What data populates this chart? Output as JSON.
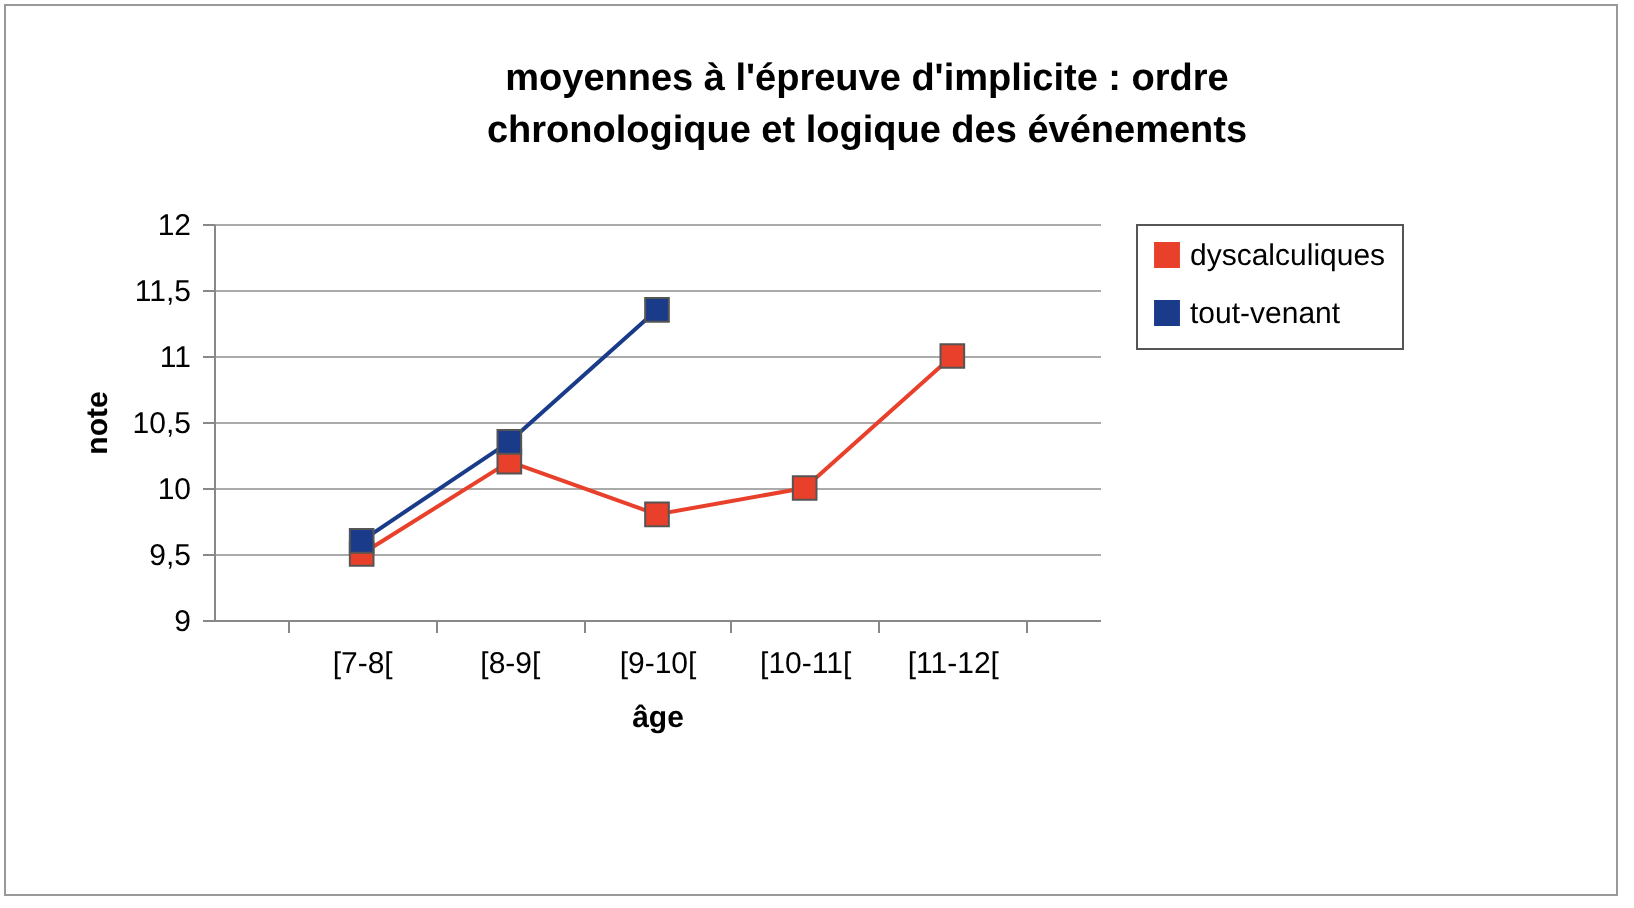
{
  "chart_data": {
    "type": "line",
    "title": "moyennes à l'épreuve d'implicite : ordre chronologique et logique des événements",
    "xlabel": "âge",
    "ylabel": "note",
    "categories": [
      "[7-8[",
      "[8-9[",
      "[9-10[",
      "[10-11[",
      "[11-12["
    ],
    "series": [
      {
        "name": "dyscalculiques",
        "color": "#e8402a",
        "values": [
          9.5,
          10.2,
          9.8,
          10,
          11
        ]
      },
      {
        "name": "tout-venant",
        "color": "#1a3a8a",
        "values": [
          9.6,
          10.35,
          11.35,
          null,
          null
        ]
      }
    ],
    "ylim": [
      9,
      12
    ],
    "yticks": [
      9,
      {
        "value": 9.5,
        "label": "9,5"
      },
      10,
      {
        "value": 10.5,
        "label": "10,5"
      },
      11,
      {
        "value": 11.5,
        "label": "11,5"
      },
      12
    ],
    "grid": "y",
    "legend": "right",
    "marker": "square",
    "line_style": "solid"
  }
}
